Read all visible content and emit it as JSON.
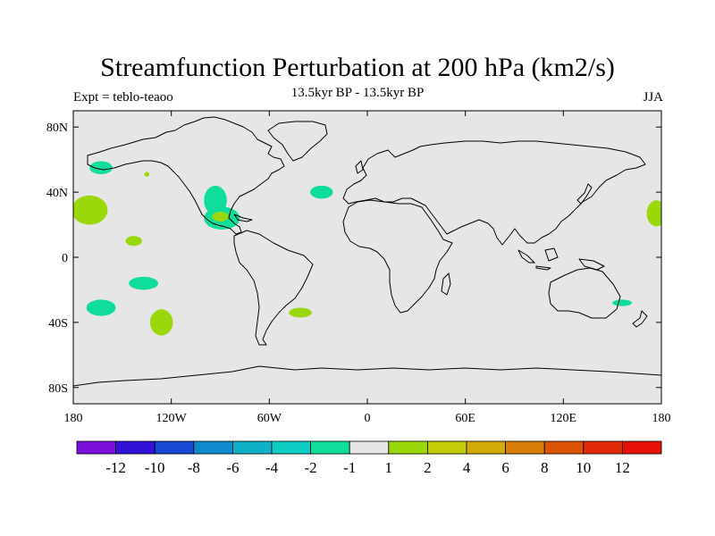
{
  "title": "Streamfunction Perturbation at 200 hPa (km2/s)",
  "left_subtitle": "Expt = teblo-teaoo",
  "center_subtitle": "13.5kyr BP - 13.5kyr BP",
  "right_subtitle": "JJA",
  "map": {
    "lon_range": [
      -180,
      180
    ],
    "lat_range": [
      -90,
      90
    ],
    "background_color": "#e6e6e6",
    "land_outline_color": "#000000",
    "lon_ticks": [
      {
        "value": -180,
        "label": "180"
      },
      {
        "value": -120,
        "label": "120W"
      },
      {
        "value": -60,
        "label": "60W"
      },
      {
        "value": 0,
        "label": "0"
      },
      {
        "value": 60,
        "label": "60E"
      },
      {
        "value": 120,
        "label": "120E"
      },
      {
        "value": 180,
        "label": "180"
      }
    ],
    "lat_ticks": [
      {
        "value": 80,
        "label": "80N"
      },
      {
        "value": 40,
        "label": "40N"
      },
      {
        "value": 0,
        "label": "0"
      },
      {
        "value": -40,
        "label": "40S"
      },
      {
        "value": -80,
        "label": "80S"
      }
    ],
    "anomalies": [
      {
        "lon": -163,
        "lat": 55,
        "rlon": 7,
        "rlat": 4,
        "color": "#10dc9c"
      },
      {
        "lon": -170,
        "lat": 29,
        "rlon": 11,
        "rlat": 9,
        "color": "#9ad70b"
      },
      {
        "lon": -135,
        "lat": 51,
        "rlon": 1.5,
        "rlat": 1.5,
        "color": "#9ad70b"
      },
      {
        "lon": -143,
        "lat": 10,
        "rlon": 5,
        "rlat": 3,
        "color": "#9ad70b"
      },
      {
        "lon": -93,
        "lat": 35,
        "rlon": 7,
        "rlat": 9,
        "color": "#10dc9c"
      },
      {
        "lon": -89,
        "lat": 24,
        "rlon": 11,
        "rlat": 7,
        "color": "#10dc9c"
      },
      {
        "lon": -90,
        "lat": 25,
        "rlon": 5,
        "rlat": 3,
        "color": "#9ad70b"
      },
      {
        "lon": -28,
        "lat": 40,
        "rlon": 7,
        "rlat": 4,
        "color": "#10dc9c"
      },
      {
        "lon": -137,
        "lat": -16,
        "rlon": 9,
        "rlat": 4,
        "color": "#10dc9c"
      },
      {
        "lon": -163,
        "lat": -31,
        "rlon": 9,
        "rlat": 5,
        "color": "#10dc9c"
      },
      {
        "lon": -126,
        "lat": -40,
        "rlon": 7,
        "rlat": 8,
        "color": "#9ad70b"
      },
      {
        "lon": -41,
        "lat": -34,
        "rlon": 7,
        "rlat": 3,
        "color": "#9ad70b"
      },
      {
        "lon": 156,
        "lat": -28,
        "rlon": 6,
        "rlat": 2,
        "color": "#10dc9c"
      },
      {
        "lon": 177,
        "lat": 27,
        "rlon": 6,
        "rlat": 8,
        "color": "#9ad70b"
      }
    ]
  },
  "colorbar": {
    "colors": [
      "#7a0fdc",
      "#3312d8",
      "#1648d3",
      "#118acd",
      "#10b0c8",
      "#0fcdc4",
      "#10dc9c",
      "#e6e6e6",
      "#9ad70b",
      "#c3cd0a",
      "#d2aa08",
      "#d77f08",
      "#dc5308",
      "#e12a08",
      "#e61008"
    ],
    "labels": [
      "-12",
      "-10",
      "-8",
      "-6",
      "-4",
      "-2",
      "-1",
      "1",
      "2",
      "4",
      "6",
      "8",
      "10",
      "12"
    ]
  }
}
